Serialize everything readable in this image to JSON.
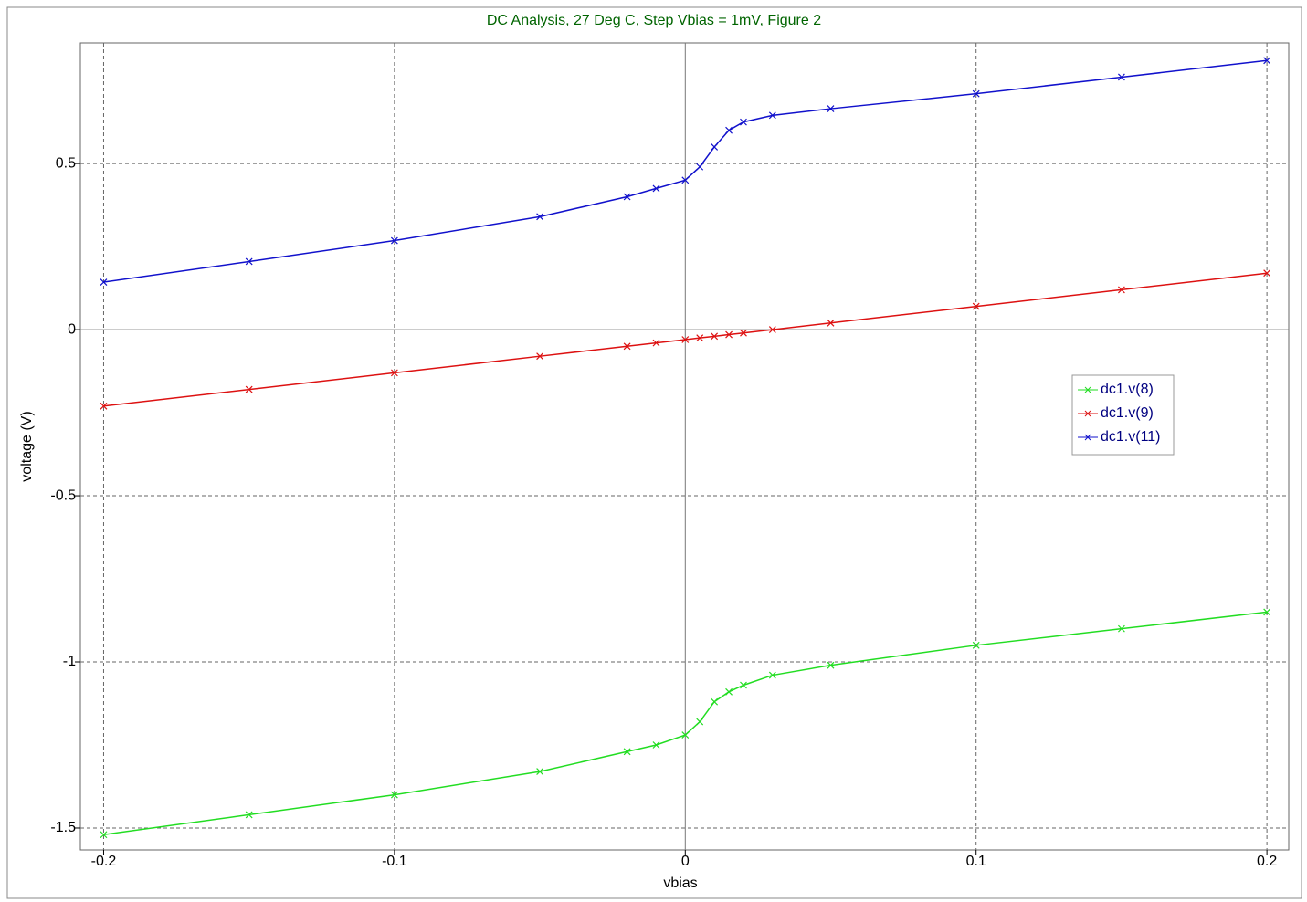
{
  "chart_data": {
    "type": "line",
    "title": "DC Analysis, 27 Deg C, Step Vbias = 1mV, Figure 2",
    "xlabel": "vbias",
    "ylabel": "voltage (V)",
    "x": [
      -0.2,
      -0.15,
      -0.1,
      -0.05,
      -0.02,
      -0.01,
      0,
      0.005,
      0.01,
      0.015,
      0.02,
      0.03,
      0.05,
      0.1,
      0.15,
      0.2
    ],
    "series": [
      {
        "name": "dc1.v(8)",
        "color": "#22dd22",
        "values": [
          -1.52,
          -1.46,
          -1.4,
          -1.33,
          -1.27,
          -1.25,
          -1.22,
          -1.18,
          -1.12,
          -1.09,
          -1.07,
          -1.04,
          -1.01,
          -0.95,
          -0.9,
          -0.85
        ]
      },
      {
        "name": "dc1.v(9)",
        "color": "#dd1111",
        "values": [
          -0.23,
          -0.18,
          -0.13,
          -0.08,
          -0.05,
          -0.04,
          -0.03,
          -0.025,
          -0.02,
          -0.015,
          -0.01,
          0,
          0.02,
          0.07,
          0.12,
          0.17
        ]
      },
      {
        "name": "dc1.v(11)",
        "color": "#1111cc",
        "values": [
          0.143,
          0.205,
          0.268,
          0.34,
          0.4,
          0.425,
          0.45,
          0.49,
          0.55,
          0.6,
          0.625,
          0.645,
          0.665,
          0.71,
          0.76,
          0.81
        ]
      }
    ],
    "xlim": [
      -0.208,
      0.2075
    ],
    "ylim": [
      -1.566,
      0.863
    ],
    "xticks": [
      -0.2,
      -0.1,
      0,
      0.1,
      0.2
    ],
    "yticks": [
      -1.5,
      -1,
      -0.5,
      0,
      0.5
    ],
    "grid": true,
    "legend": "right"
  }
}
